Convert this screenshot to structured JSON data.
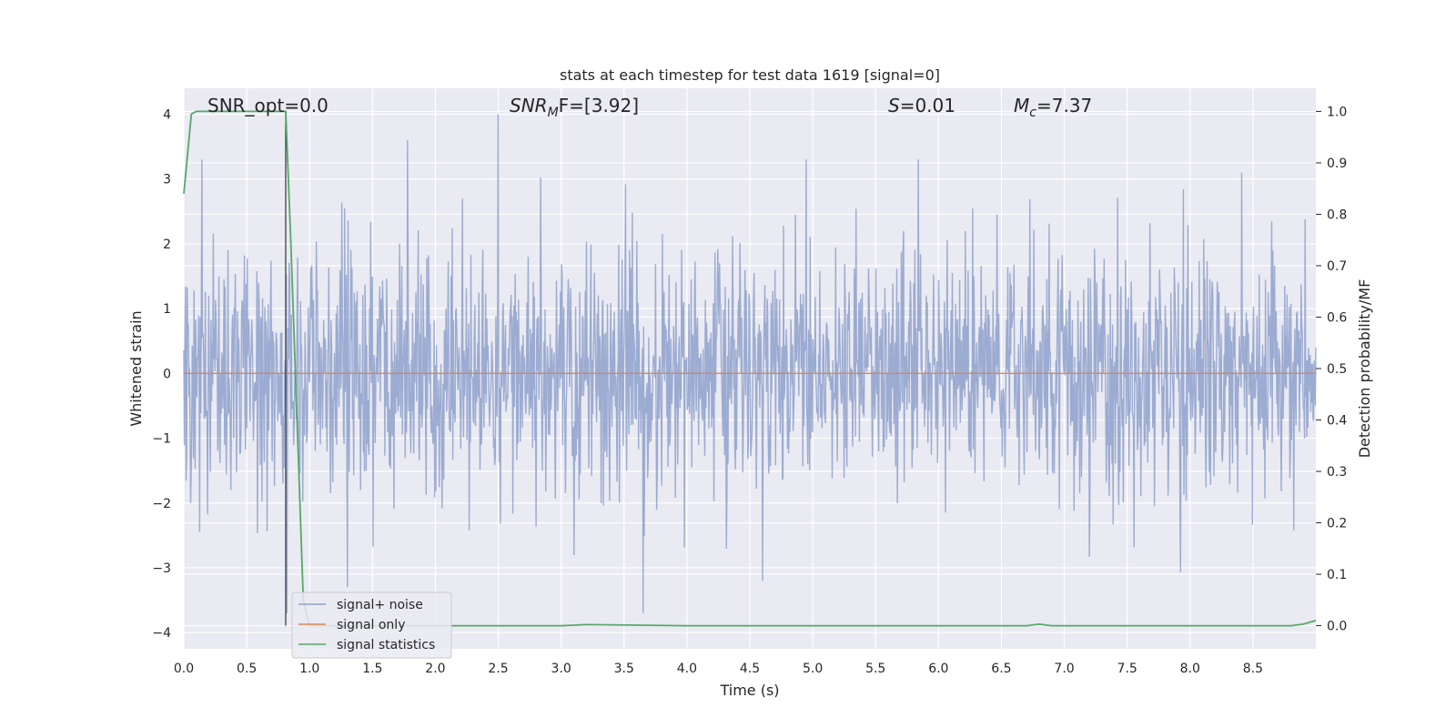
{
  "chart_data": {
    "type": "line",
    "title": "stats at each timestep for test data 1619 [signal=0]",
    "xlabel": "Time (s)",
    "ylabel": "Whitened strain",
    "ylabel_right": "Detection probability/MF",
    "xlim": [
      0.0,
      9.0
    ],
    "ylim": [
      -4.25,
      4.4
    ],
    "ylim_right": [
      -0.045,
      1.045
    ],
    "x_ticks": [
      "0.0",
      "0.5",
      "1.0",
      "1.5",
      "2.0",
      "2.5",
      "3.0",
      "3.5",
      "4.0",
      "4.5",
      "5.0",
      "5.5",
      "6.0",
      "6.5",
      "7.0",
      "7.5",
      "8.0",
      "8.5"
    ],
    "x_tick_values": [
      0.0,
      0.5,
      1.0,
      1.5,
      2.0,
      2.5,
      3.0,
      3.5,
      4.0,
      4.5,
      5.0,
      5.5,
      6.0,
      6.5,
      7.0,
      7.5,
      8.0,
      8.5
    ],
    "y_ticks": [
      "4",
      "3",
      "2",
      "1",
      "0",
      "−1",
      "−2",
      "−3",
      "−4"
    ],
    "y_tick_values": [
      4,
      3,
      2,
      1,
      0,
      -1,
      -2,
      -3,
      -4
    ],
    "y2_ticks": [
      "1.0",
      "0.9",
      "0.8",
      "0.7",
      "0.6",
      "0.5",
      "0.4",
      "0.3",
      "0.2",
      "0.1",
      "0.0"
    ],
    "y2_tick_values": [
      1.0,
      0.9,
      0.8,
      0.7,
      0.6,
      0.5,
      0.4,
      0.3,
      0.2,
      0.1,
      0.0
    ],
    "grid": true,
    "legend_position": "lower-left",
    "annotations": {
      "snr_opt": "SNR_opt=0.0",
      "snr_mf_main": "SNR",
      "snr_mf_sub": "M",
      "snr_mf_rest": "F=[3.92]",
      "s_main": "S",
      "s_rest": "=0.01",
      "mc_main": "M",
      "mc_sub": "c",
      "mc_rest": "=7.37"
    },
    "vertical_marker_x": 0.81,
    "series": [
      {
        "name": "signal+ noise",
        "color": "#8da0cb",
        "axis": "left",
        "description_values": "whitened noise, amplitude mostly within ±2, peaks near ±3 to ±4",
        "peaks": [
          {
            "x": 0.82,
            "y": 4.0
          },
          {
            "x": 1.78,
            "y": 3.6
          },
          {
            "x": 2.5,
            "y": 4.0
          },
          {
            "x": 8.41,
            "y": 3.1
          },
          {
            "x": 3.65,
            "y": -3.7
          },
          {
            "x": 0.82,
            "y": -3.7
          },
          {
            "x": 4.6,
            "y": -3.2
          },
          {
            "x": 1.3,
            "y": -3.3
          }
        ]
      },
      {
        "name": "signal only",
        "color": "#dd8452",
        "axis": "left",
        "x": [
          0.0,
          9.0
        ],
        "y": [
          0.0,
          0.0
        ]
      },
      {
        "name": "signal statistics",
        "color": "#55a868",
        "axis": "right",
        "x": [
          0.0,
          0.06,
          0.1,
          0.2,
          0.4,
          0.6,
          0.8,
          0.81,
          0.85,
          0.9,
          0.95,
          1.0,
          2.0,
          3.0,
          3.2,
          4.0,
          5.0,
          6.0,
          6.7,
          6.8,
          6.9,
          7.5,
          8.0,
          8.5,
          8.8,
          8.9,
          9.0
        ],
        "y": [
          0.84,
          0.995,
          1.0,
          1.0,
          1.0,
          1.0,
          1.0,
          1.0,
          0.75,
          0.4,
          0.05,
          0.0,
          0.0,
          0.0,
          0.002,
          0.0,
          0.0,
          0.0,
          0.0,
          0.003,
          0.0,
          0.0,
          0.0,
          0.0,
          0.0,
          0.003,
          0.01
        ]
      }
    ]
  }
}
